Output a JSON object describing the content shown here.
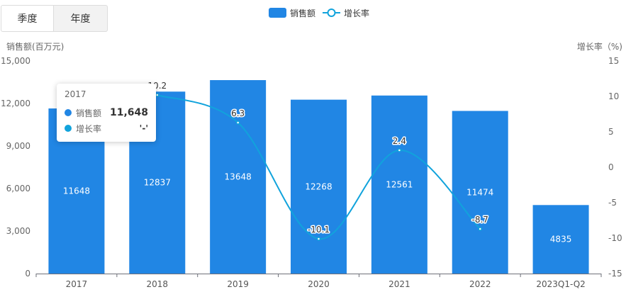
{
  "tabs": [
    "季度",
    "年度"
  ],
  "legend": {
    "bar": "销售额",
    "line": "增长率"
  },
  "tooltip": {
    "title": "2017",
    "rows": [
      {
        "name": "销售额",
        "value": "11,648",
        "color": "#2186e4"
      },
      {
        "name": "增长率",
        "value": "'-'",
        "color": "#11a3dc"
      }
    ]
  },
  "chart_data": {
    "type": "bar",
    "categories": [
      "2017",
      "2018",
      "2019",
      "2020",
      "2021",
      "2022",
      "2023Q1-Q2"
    ],
    "series": [
      {
        "name": "销售额",
        "type": "bar",
        "axis": "left",
        "values": [
          11648,
          12837,
          13648,
          12268,
          12561,
          11474,
          4835
        ],
        "color": "#2186e4"
      },
      {
        "name": "增长率",
        "type": "line",
        "axis": "right",
        "values": [
          null,
          10.2,
          6.3,
          -10.1,
          2.4,
          -8.7,
          null
        ],
        "color": "#11a3dc"
      }
    ],
    "ylabel_left": "销售额(百万元)",
    "ylabel_right": "增长率（%)",
    "ylim_left": [
      0,
      15000
    ],
    "ylim_right": [
      -15,
      15
    ],
    "yticks_left": [
      "0",
      "3,000",
      "6,000",
      "9,000",
      "12,000",
      "15,000"
    ],
    "yticks_right": [
      "-15",
      "-10",
      "-5",
      "0",
      "5",
      "10",
      "15"
    ],
    "legend_position": "top-center",
    "grid": false
  }
}
